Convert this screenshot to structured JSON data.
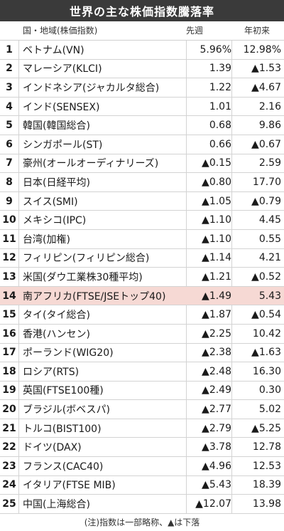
{
  "title": "世界の主な株価指数騰落率",
  "header": {
    "name": "国・地域(株価指数)",
    "week": "先週",
    "year": "年初来"
  },
  "rows": [
    {
      "rank": "1",
      "name": "ベトナム(VN)",
      "week": "5.96%",
      "year": "12.98%"
    },
    {
      "rank": "2",
      "name": "マレーシア(KLCI)",
      "week": "1.39",
      "year": "▲1.53"
    },
    {
      "rank": "3",
      "name": "インドネシア(ジャカルタ総合)",
      "week": "1.22",
      "year": "▲4.67"
    },
    {
      "rank": "4",
      "name": "インド(SENSEX)",
      "week": "1.01",
      "year": "2.16"
    },
    {
      "rank": "5",
      "name": "韓国(韓国総合)",
      "week": "0.68",
      "year": "9.86"
    },
    {
      "rank": "6",
      "name": "シンガポール(ST)",
      "week": "0.66",
      "year": "▲0.67"
    },
    {
      "rank": "7",
      "name": "豪州(オールオーディナリーズ)",
      "week": "▲0.15",
      "year": "2.59"
    },
    {
      "rank": "8",
      "name": "日本(日経平均)",
      "week": "▲0.80",
      "year": "17.70"
    },
    {
      "rank": "9",
      "name": "スイス(SMI)",
      "week": "▲1.05",
      "year": "▲0.79"
    },
    {
      "rank": "10",
      "name": "メキシコ(IPC)",
      "week": "▲1.10",
      "year": "4.45"
    },
    {
      "rank": "11",
      "name": "台湾(加権)",
      "week": "▲1.10",
      "year": "0.55"
    },
    {
      "rank": "12",
      "name": "フィリピン(フィリピン総合)",
      "week": "▲1.14",
      "year": "4.21"
    },
    {
      "rank": "13",
      "name": "米国(ダウ工業株30種平均)",
      "week": "▲1.21",
      "year": "▲0.52"
    },
    {
      "rank": "14",
      "name": "南アフリカ(FTSE/JSEトップ40)",
      "week": "▲1.49",
      "year": "5.43"
    },
    {
      "rank": "15",
      "name": "タイ(タイ総合)",
      "week": "▲1.87",
      "year": "▲0.54"
    },
    {
      "rank": "16",
      "name": "香港(ハンセン)",
      "week": "▲2.25",
      "year": "10.42"
    },
    {
      "rank": "17",
      "name": "ポーランド(WIG20)",
      "week": "▲2.38",
      "year": "▲1.63"
    },
    {
      "rank": "18",
      "name": "ロシア(RTS)",
      "week": "▲2.48",
      "year": "16.30"
    },
    {
      "rank": "19",
      "name": "英国(FTSE100種)",
      "week": "▲2.49",
      "year": "0.30"
    },
    {
      "rank": "20",
      "name": "ブラジル(ボベスパ)",
      "week": "▲2.77",
      "year": "5.02"
    },
    {
      "rank": "21",
      "name": "トルコ(BIST100)",
      "week": "▲2.79",
      "year": "▲5.25"
    },
    {
      "rank": "22",
      "name": "ドイツ(DAX)",
      "week": "▲3.78",
      "year": "12.78"
    },
    {
      "rank": "23",
      "name": "フランス(CAC40)",
      "week": "▲4.96",
      "year": "12.53"
    },
    {
      "rank": "24",
      "name": "イタリア(FTSE MIB)",
      "week": "▲5.43",
      "year": "18.39"
    },
    {
      "rank": "25",
      "name": "中国(上海総合)",
      "week": "▲12.07",
      "year": "13.98"
    }
  ],
  "highlight_rank": "14",
  "footnote": "(注)指数は一部略称、▲は下落",
  "colors": {
    "title_bg": "#3a3a3a",
    "highlight_bg": "#f6d9d4"
  }
}
